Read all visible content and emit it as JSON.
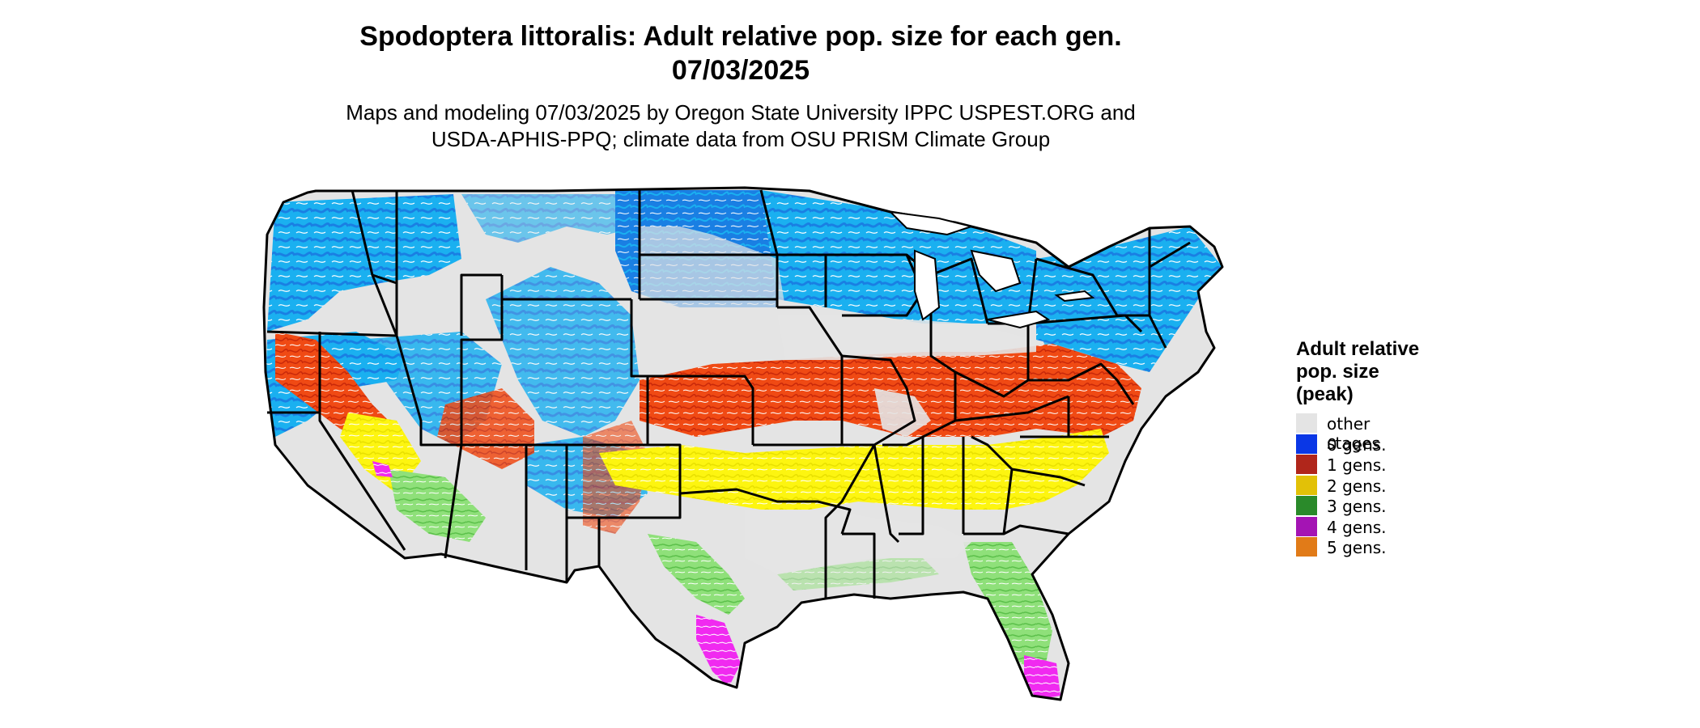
{
  "header": {
    "title_line1": "Spodoptera littoralis: Adult relative pop. size for each gen.",
    "title_line2": "07/03/2025",
    "subtitle_line1": "Maps and modeling 07/03/2025 by Oregon State University IPPC USPEST.ORG and",
    "subtitle_line2": "USDA-APHIS-PPQ; climate data from OSU PRISM Climate Group"
  },
  "legend": {
    "title_line1": "Adult relative",
    "title_line2": "pop. size",
    "title_line3": "(peak)",
    "items": [
      {
        "label": "other stages",
        "color": "#e4e4e4"
      },
      {
        "label": "0 gens.",
        "color": "#0a37e6"
      },
      {
        "label": "1 gens.",
        "color": "#b0261b"
      },
      {
        "label": "2 gens.",
        "color": "#e2c107"
      },
      {
        "label": "3 gens.",
        "color": "#2a8a2a"
      },
      {
        "label": "4 gens.",
        "color": "#a414b4"
      },
      {
        "label": "5 gens.",
        "color": "#e17b18"
      }
    ]
  },
  "map": {
    "region": "contiguous United States",
    "colors": {
      "background_land": "#e4e4e4",
      "zero_gens_dark": "#1a7fe3",
      "zero_gens_light": "#1ab0f0",
      "one_gen": "#f04a14",
      "two_gens": "#fdf510",
      "three_gens": "#8fe07a",
      "four_gens": "#f02af0",
      "borders": "#000000"
    }
  }
}
